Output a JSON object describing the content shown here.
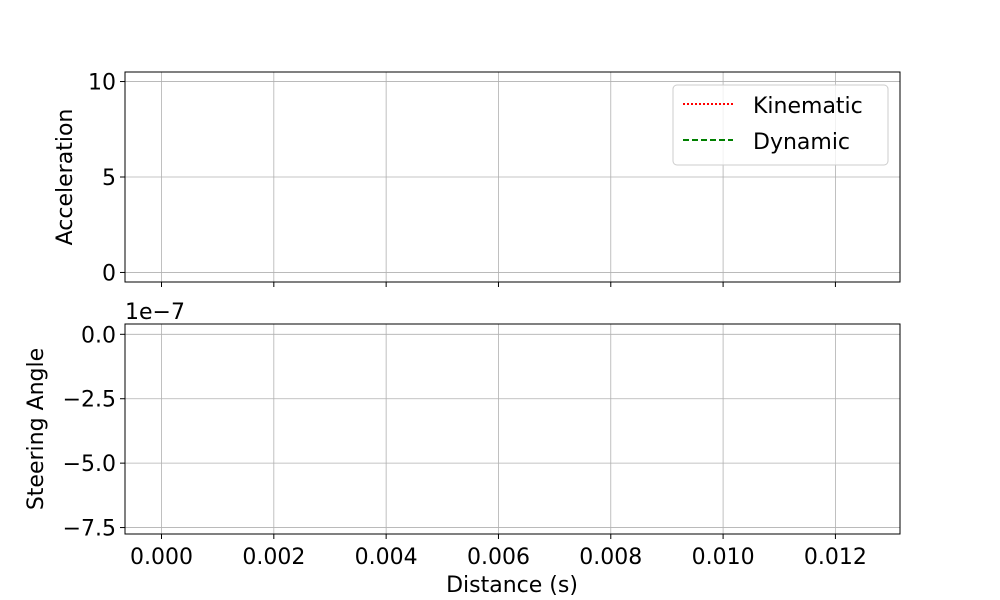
{
  "chart_data": [
    {
      "type": "line",
      "ylabel": "Acceleration",
      "xlim": [
        -0.00065,
        0.01315
      ],
      "ylim": [
        -0.5,
        10.5
      ],
      "yticks": [
        0,
        5,
        10
      ],
      "yticklabels": [
        "0",
        "5",
        "10"
      ],
      "grid": true,
      "legend": {
        "placement": "top-right",
        "entries": [
          {
            "label": "Kinematic",
            "color": "#ff0000",
            "style": "dotted"
          },
          {
            "label": "Dynamic",
            "color": "#008000",
            "style": "dashed"
          }
        ]
      },
      "series": [
        {
          "name": "Kinematic",
          "color": "#ff0000",
          "x": [],
          "y": []
        },
        {
          "name": "Dynamic",
          "color": "#008000",
          "x": [],
          "y": []
        }
      ]
    },
    {
      "type": "line",
      "xlabel": "Distance (s)",
      "ylabel": "Steering Angle",
      "offset_text": "1e−7",
      "xlim": [
        -0.00065,
        0.01315
      ],
      "ylim": [
        -7.75,
        0.4
      ],
      "yticks": [
        0.0,
        -2.5,
        -5.0,
        -7.5
      ],
      "yticklabels": [
        "0.0",
        "−2.5",
        "−5.0",
        "−7.5"
      ],
      "xticks": [
        0.0,
        0.002,
        0.004,
        0.006,
        0.008,
        0.01,
        0.012
      ],
      "xticklabels": [
        "0.000",
        "0.002",
        "0.004",
        "0.006",
        "0.008",
        "0.010",
        "0.012"
      ],
      "grid": true,
      "series": [
        {
          "name": "Kinematic",
          "color": "#ff0000",
          "x": [],
          "y": []
        },
        {
          "name": "Dynamic",
          "color": "#008000",
          "x": [],
          "y": []
        }
      ]
    }
  ]
}
